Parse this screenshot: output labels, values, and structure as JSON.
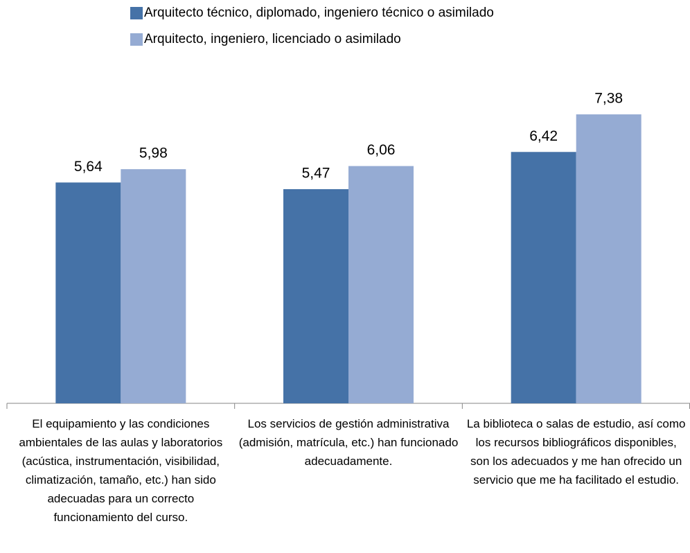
{
  "chart_data": {
    "type": "bar",
    "categories": [
      "El equipamiento y las condiciones ambientales de las aulas y laboratorios (acústica, instrumentación, visibilidad, climatización, tamaño, etc.) han sido adecuadas para un correcto funcionamiento del curso.",
      "Los servicios de gestión administrativa (admisión, matrícula, etc.) han funcionado adecuadamente.",
      "La biblioteca o salas de estudio, así como los recursos bibliográficos disponibles, son los adecuados y me han ofrecido un servicio que me ha facilitado el estudio."
    ],
    "series": [
      {
        "name": "Arquitecto técnico, diplomado, ingeniero técnico o asimilado",
        "color": "#4572a7",
        "values": [
          5.64,
          5.47,
          6.42
        ],
        "value_labels": [
          "5,64",
          "5,47",
          "6,42"
        ]
      },
      {
        "name": "Arquitecto, ingeniero, licenciado o asimilado",
        "color": "#95abd3",
        "values": [
          5.98,
          6.06,
          7.38
        ],
        "value_labels": [
          "5,98",
          "6,06",
          "7,38"
        ]
      }
    ],
    "ylim": [
      0,
      10
    ],
    "legend": "top"
  }
}
